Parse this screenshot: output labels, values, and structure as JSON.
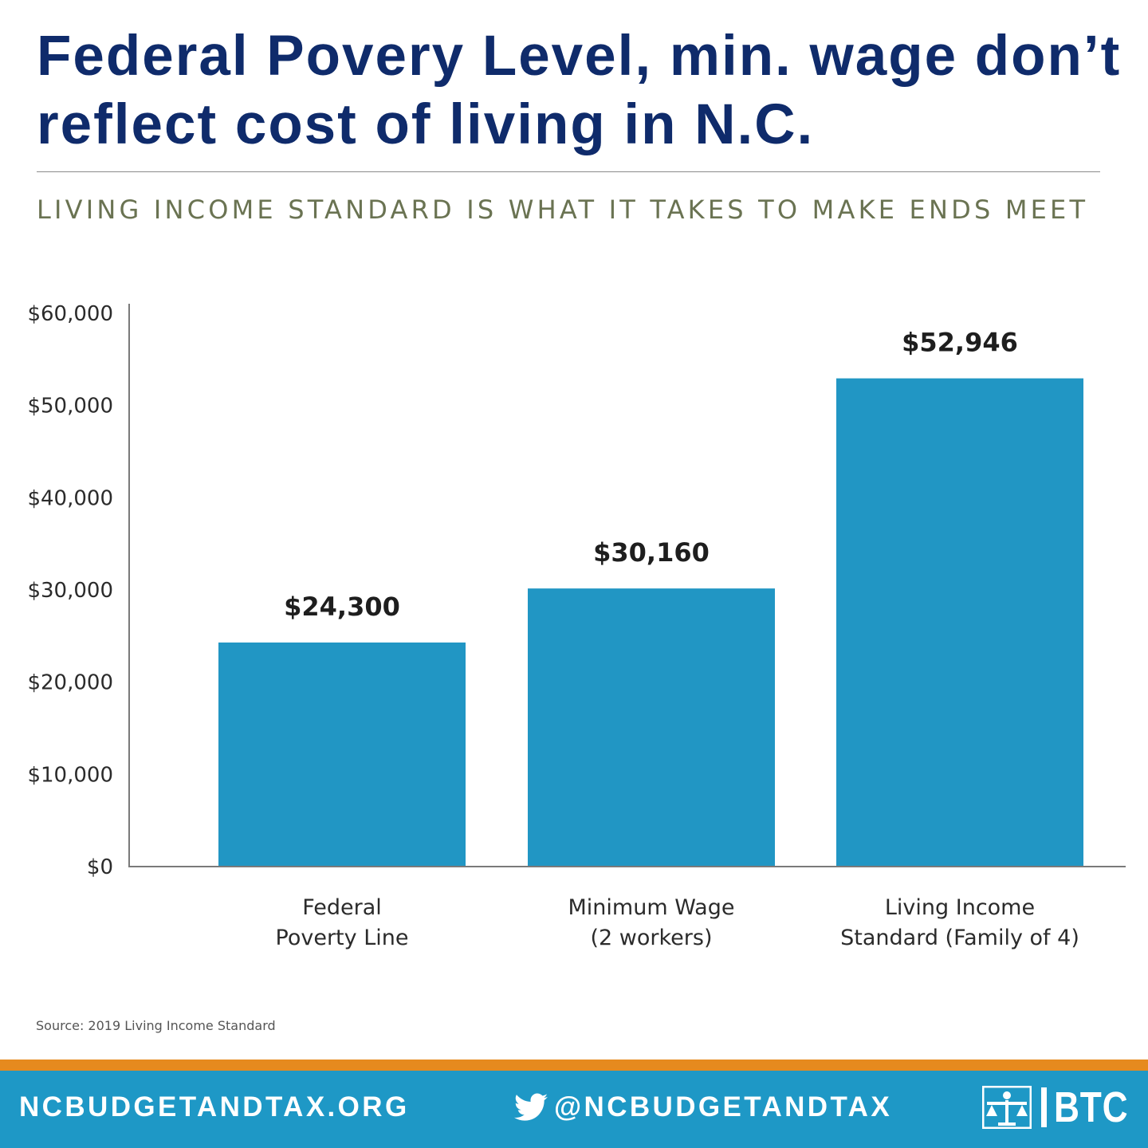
{
  "title": "Federal Povery Level, min. wage don’t reflect cost of living in N.C.",
  "subtitle": "LIVING INCOME STANDARD IS WHAT IT TAKES TO MAKE ENDS MEET",
  "source": "Source: 2019 Living Income Standard",
  "footer": {
    "url": "NCBUDGETANDTAX.ORG",
    "twitter_handle": "@NCBUDGETANDTAX",
    "logo_text": "BTC",
    "twitter_icon": "twitter-bird-icon",
    "logo_icon": "btc-scales-logo-icon"
  },
  "colors": {
    "title": "#0f2b6b",
    "subtitle": "#6a7352",
    "bar": "#2196c4",
    "footer_bg": "#1e98c6",
    "footer_accent": "#e68a1e"
  },
  "chart_data": {
    "type": "bar",
    "title": "",
    "xlabel": "",
    "ylabel": "",
    "categories": [
      [
        "Federal",
        "Poverty Line"
      ],
      [
        "Minimum Wage",
        "(2 workers)"
      ],
      [
        "Living Income",
        "Standard (Family of 4)"
      ]
    ],
    "values": [
      24300,
      30160,
      52946
    ],
    "value_labels": [
      "$24,300",
      "$30,160",
      "$52,946"
    ],
    "ylim": [
      0,
      60000
    ],
    "yticks": [
      0,
      10000,
      20000,
      30000,
      40000,
      50000,
      60000
    ],
    "ytick_labels": [
      "$0",
      "$10,000",
      "$20,000",
      "$30,000",
      "$40,000",
      "$50,000",
      "$60,000"
    ],
    "grid": false,
    "legend": "none"
  }
}
